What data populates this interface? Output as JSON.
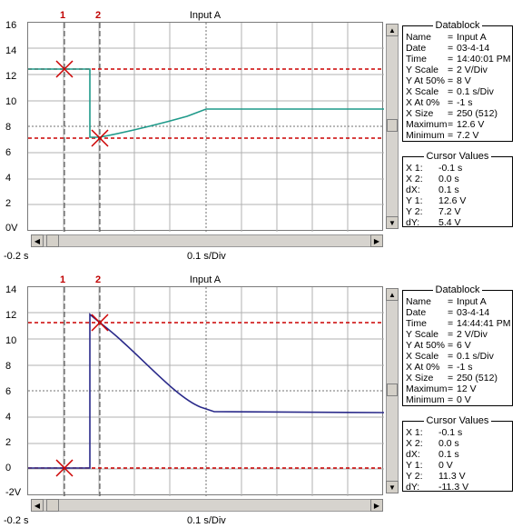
{
  "panels": [
    {
      "title": "Input A",
      "y_ticks": [
        "16",
        "14",
        "12",
        "10",
        "8",
        "6",
        "4",
        "2",
        "0V"
      ],
      "x_start_label": "-0.2 s",
      "x_center_label": "0.1 s/Div",
      "cursor_labels": [
        "1",
        "2"
      ],
      "datablock": {
        "title": "Datablock",
        "rows": [
          {
            "k": "Name",
            "v": "Input A"
          },
          {
            "k": "Date",
            "v": "03-4-14"
          },
          {
            "k": "Time",
            "v": "14:40:01 PM"
          },
          {
            "k": "Y Scale",
            "v": "2    V/Div"
          },
          {
            "k": "Y At 50%",
            "v": "8    V"
          },
          {
            "k": "X Scale",
            "v": "0.1  s/Div"
          },
          {
            "k": "X At 0%",
            "v": "-1    s"
          },
          {
            "k": "X Size",
            "v": "250 (512)"
          },
          {
            "k": "Maximum",
            "v": "12.6  V"
          },
          {
            "k": "Minimum",
            "v": "7.2  V"
          }
        ]
      },
      "cursor_values": {
        "title": "Cursor Values",
        "rows": [
          {
            "k": "X 1:",
            "v": "-0.1  s"
          },
          {
            "k": "X 2:",
            "v": "0.0  s"
          },
          {
            "k": "dX:",
            "v": "0.1  s"
          },
          {
            "k": "Y 1:",
            "v": "12.6  V"
          },
          {
            "k": "Y 2:",
            "v": "7.2  V"
          },
          {
            "k": "dY:",
            "v": "5.4  V"
          }
        ]
      }
    },
    {
      "title": "Input A",
      "y_ticks": [
        "14",
        "12",
        "10",
        "8",
        "6",
        "4",
        "2",
        "0",
        "-2V"
      ],
      "x_start_label": "-0.2 s",
      "x_center_label": "0.1 s/Div",
      "cursor_labels": [
        "1",
        "2"
      ],
      "datablock": {
        "title": "Datablock",
        "rows": [
          {
            "k": "Name",
            "v": "Input A"
          },
          {
            "k": "Date",
            "v": "03-4-14"
          },
          {
            "k": "Time",
            "v": "14:44:41 PM"
          },
          {
            "k": "Y Scale",
            "v": "2    V/Div"
          },
          {
            "k": "Y At 50%",
            "v": "6    V"
          },
          {
            "k": "X Scale",
            "v": "0.1  s/Div"
          },
          {
            "k": "X At 0%",
            "v": "-1    s"
          },
          {
            "k": "X Size",
            "v": "250 (512)"
          },
          {
            "k": "Maximum",
            "v": "12    V"
          },
          {
            "k": "Minimum",
            "v": "0    V"
          }
        ]
      },
      "cursor_values": {
        "title": "Cursor Values",
        "rows": [
          {
            "k": "X 1:",
            "v": "-0.1  s"
          },
          {
            "k": "X 2:",
            "v": "0.0  s"
          },
          {
            "k": "dX:",
            "v": "0.1  s"
          },
          {
            "k": "Y 1:",
            "v": "0    V"
          },
          {
            "k": "Y 2:",
            "v": "11.3  V"
          },
          {
            "k": "dY:",
            "v": "-11.3  V"
          }
        ]
      }
    }
  ],
  "colors": {
    "trace_top": "#1f9a8a",
    "trace_bottom": "#2a2a8a",
    "cursor": "#cc0000",
    "grid": "#b0b0b0"
  }
}
